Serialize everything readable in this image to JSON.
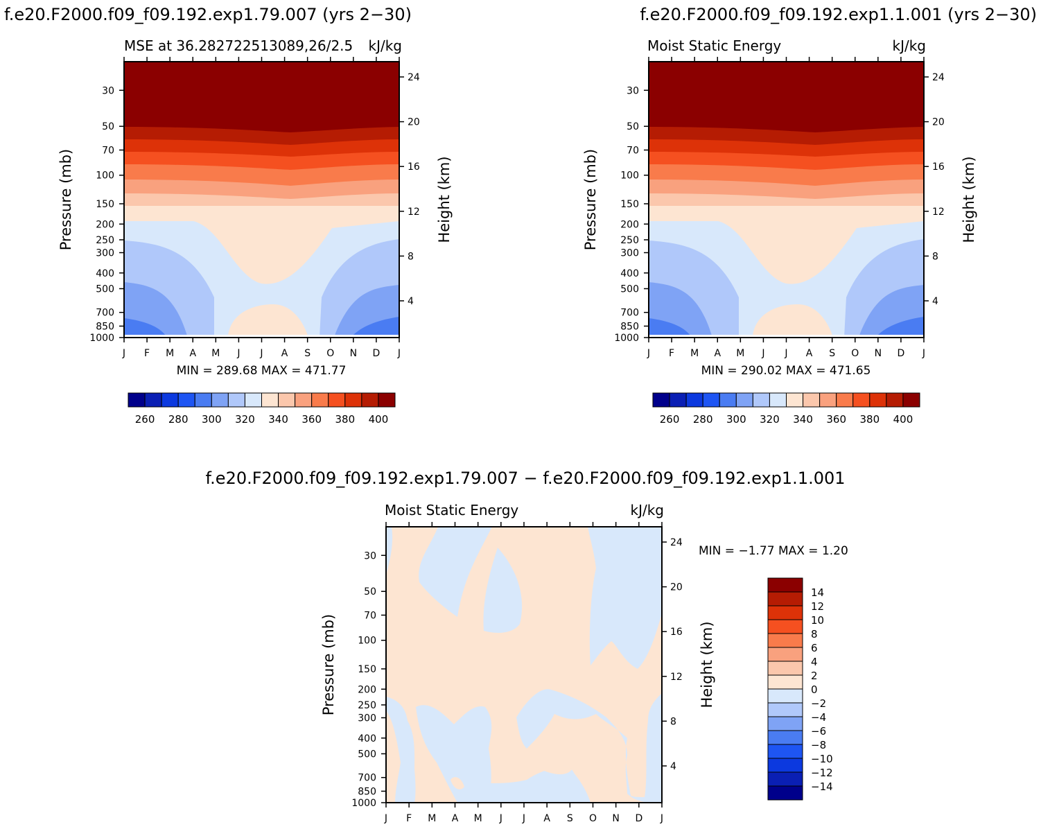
{
  "header": {
    "left_title": "f.e20.F2000.f09_f09.192.exp1.79.007 (yrs 2−30)",
    "right_title": "f.e20.F2000.f09_f09.192.exp1.1.001 (yrs 2−30)",
    "diff_title": "f.e20.F2000.f09_f09.192.exp1.79.007 − f.e20.F2000.f09_f09.192.exp1.1.001"
  },
  "panel_a": {
    "subtitle": "MSE at 36.282722513089,26/2.5",
    "units": "kJ/kg",
    "minmax": "MIN = 289.68 MAX = 471.77"
  },
  "panel_b": {
    "subtitle": "Moist Static Energy",
    "units": "kJ/kg",
    "minmax": "MIN = 290.02 MAX = 471.65"
  },
  "panel_c": {
    "subtitle": "Moist Static Energy",
    "units": "kJ/kg",
    "minmax": "MIN =   −1.77 MAX =     1.20"
  },
  "axes": {
    "ylabel": "Pressure (mb)",
    "ylabel_right": "Height (km)",
    "months": [
      "J",
      "F",
      "M",
      "A",
      "M",
      "J",
      "J",
      "A",
      "S",
      "O",
      "N",
      "D",
      "J"
    ],
    "pressure_ticks": [
      "30",
      "50",
      "70",
      "100",
      "150",
      "200",
      "250",
      "300",
      "400",
      "500",
      "700",
      "850",
      "1000"
    ],
    "height_ticks": [
      "24",
      "20",
      "16",
      "12",
      "8",
      "4"
    ]
  },
  "colorbar_main": {
    "colors": [
      "#00008b",
      "#0a1fb4",
      "#0c39df",
      "#1e55f3",
      "#4a7cf2",
      "#7fa3f5",
      "#b0c8fa",
      "#d8e8fb",
      "#fde5d2",
      "#fbc7ac",
      "#f9a17e",
      "#f97b4b",
      "#f55020",
      "#dd3208",
      "#b51c03",
      "#8b0000"
    ],
    "labels": [
      "260",
      "280",
      "300",
      "320",
      "340",
      "360",
      "380",
      "400"
    ]
  },
  "colorbar_diff": {
    "colors": [
      "#00008b",
      "#0a1fb4",
      "#0c39df",
      "#1e55f3",
      "#4a7cf2",
      "#7fa3f5",
      "#b0c8fa",
      "#d8e8fb",
      "#fde5d2",
      "#fbc7ac",
      "#f9a17e",
      "#f97b4b",
      "#f55020",
      "#dd3208",
      "#b51c03",
      "#8b0000"
    ],
    "labels": [
      "14",
      "12",
      "10",
      "8",
      "6",
      "4",
      "2",
      "0",
      "−2",
      "−4",
      "−6",
      "−8",
      "−10",
      "−12",
      "−14"
    ]
  },
  "chart_data": [
    {
      "type": "heatmap",
      "title": "MSE at 36.282722513089,26/2.5",
      "units": "kJ/kg",
      "xlabel": "",
      "ylabel": "Pressure (mb)",
      "ylabel_right": "Height (km)",
      "x_categories": [
        "J",
        "F",
        "M",
        "A",
        "M",
        "J",
        "J",
        "A",
        "S",
        "O",
        "N",
        "D",
        "J"
      ],
      "y_pressure_mb": [
        30,
        50,
        70,
        100,
        150,
        200,
        250,
        300,
        400,
        500,
        700,
        850,
        1000
      ],
      "y_height_km": [
        24,
        20,
        16,
        12,
        8,
        4
      ],
      "ylim_mb": [
        1000,
        20
      ],
      "contour_levels": [
        255,
        265,
        275,
        285,
        295,
        305,
        315,
        325,
        335,
        345,
        355,
        365,
        375,
        385,
        395,
        405
      ],
      "approx_level_bands": [
        {
          "min": 395,
          "max": null,
          "region": "above ~60 mb"
        },
        {
          "min": 385,
          "max": 395,
          "region": "~60-70 mb"
        },
        {
          "min": 365,
          "max": 385,
          "region": "~75-110 mb"
        },
        {
          "min": 355,
          "max": 365,
          "region": "~115-145 mb"
        },
        {
          "min": 345,
          "max": 355,
          "region": "~140-180 mb"
        },
        {
          "min": 335,
          "max": 345,
          "region": "~180-210 mb all months; extends to ~500 mb Jun-Sep"
        },
        {
          "min": 325,
          "max": 335,
          "region": "~210-300 mb; below 500 mb in summer"
        },
        {
          "min": 315,
          "max": 325,
          "region": "~300-700 mb winter"
        },
        {
          "min": 305,
          "max": 315,
          "region": "~500-850 mb Jan-Mar, Nov-Dec"
        },
        {
          "min": 295,
          "max": 305,
          "region": "near surface Jan-Feb, Dec"
        },
        {
          "min": 335,
          "max": 345,
          "region": "near surface Jun-Sep"
        }
      ],
      "min": 289.68,
      "max": 471.77
    },
    {
      "type": "heatmap",
      "title": "Moist Static Energy",
      "units": "kJ/kg",
      "xlabel": "",
      "ylabel": "Pressure (mb)",
      "ylabel_right": "Height (km)",
      "x_categories": [
        "J",
        "F",
        "M",
        "A",
        "M",
        "J",
        "J",
        "A",
        "S",
        "O",
        "N",
        "D",
        "J"
      ],
      "y_pressure_mb": [
        30,
        50,
        70,
        100,
        150,
        200,
        250,
        300,
        400,
        500,
        700,
        850,
        1000
      ],
      "y_height_km": [
        24,
        20,
        16,
        12,
        8,
        4
      ],
      "ylim_mb": [
        1000,
        20
      ],
      "contour_levels": [
        255,
        265,
        275,
        285,
        295,
        305,
        315,
        325,
        335,
        345,
        355,
        365,
        375,
        385,
        395,
        405
      ],
      "min": 290.02,
      "max": 471.65
    },
    {
      "type": "heatmap",
      "title": "Moist Static Energy",
      "units": "kJ/kg",
      "xlabel": "",
      "ylabel": "Pressure (mb)",
      "ylabel_right": "Height (km)",
      "x_categories": [
        "J",
        "F",
        "M",
        "A",
        "M",
        "J",
        "J",
        "A",
        "S",
        "O",
        "N",
        "D",
        "J"
      ],
      "y_pressure_mb": [
        30,
        50,
        70,
        100,
        150,
        200,
        250,
        300,
        400,
        500,
        700,
        850,
        1000
      ],
      "y_height_km": [
        24,
        20,
        16,
        12,
        8,
        4
      ],
      "ylim_mb": [
        1000,
        20
      ],
      "contour_levels": [
        -15,
        -13,
        -11,
        -9,
        -7,
        -5,
        -3,
        -1,
        1,
        3,
        5,
        7,
        9,
        11,
        13,
        15
      ],
      "values_present": [
        {
          "min": -1,
          "max": 1,
          "color": "#d8e8fb"
        },
        {
          "min": 1,
          "max": 3,
          "color": "#fde5d2"
        }
      ],
      "min": -1.77,
      "max": 1.2
    }
  ]
}
